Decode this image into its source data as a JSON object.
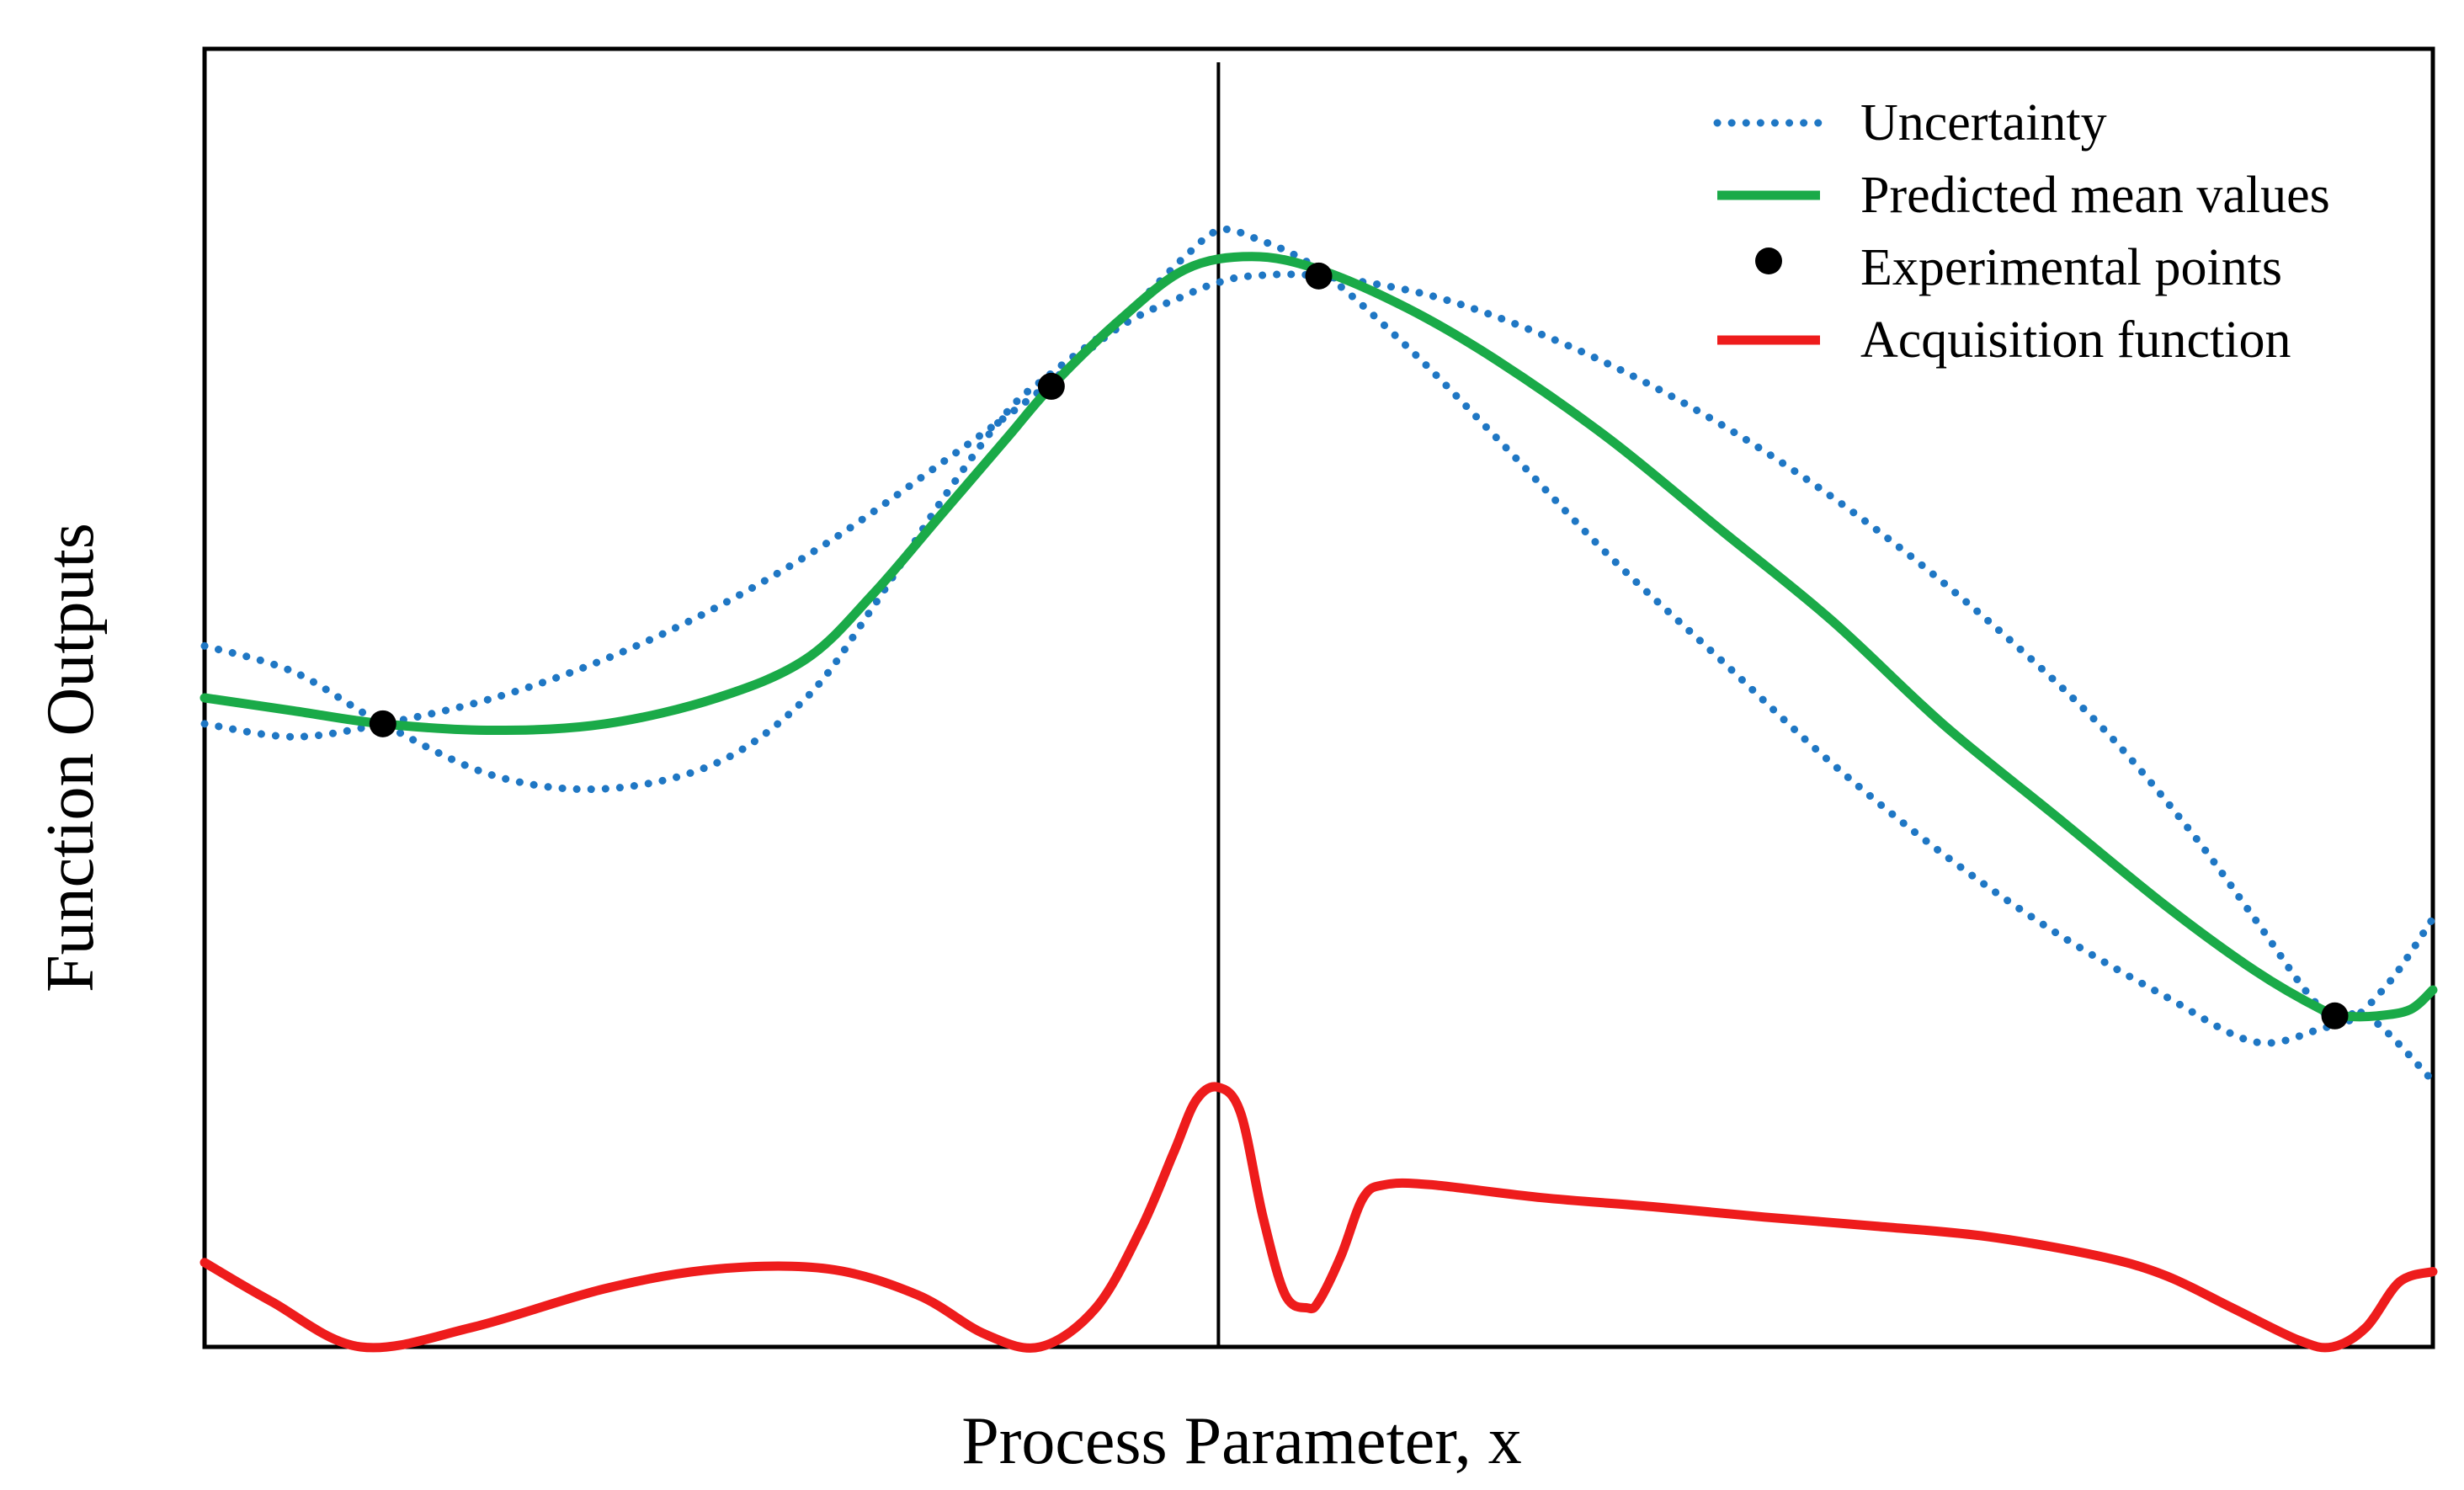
{
  "chart_data": {
    "type": "line",
    "title": "",
    "xlabel": "Process Parameter, x",
    "ylabel": "Function Outputs",
    "xlim": [
      0,
      1
    ],
    "ylim": [
      0,
      1
    ],
    "grid": false,
    "legend_position": "top-right",
    "colors": {
      "uncertainty": "#1f77c4",
      "mean": "#1aaa48",
      "points": "#000000",
      "acquisition": "#ee1c1c",
      "selection": "#000000"
    },
    "legend": [
      {
        "key": "uncertainty",
        "label": "Uncertainty",
        "style": "dotted"
      },
      {
        "key": "mean",
        "label": "Predicted mean values",
        "style": "solid"
      },
      {
        "key": "points",
        "label": "Experimental points",
        "style": "marker"
      },
      {
        "key": "acquisition",
        "label": "Acquisition function",
        "style": "solid"
      }
    ],
    "selected_x": 0.455,
    "series": [
      {
        "name": "Predicted mean values",
        "key": "mean",
        "x": [
          0.0,
          0.04,
          0.08,
          0.13,
          0.18,
          0.23,
          0.27,
          0.3,
          0.33,
          0.36,
          0.38,
          0.41,
          0.44,
          0.47,
          0.5,
          0.54,
          0.58,
          0.63,
          0.68,
          0.73,
          0.78,
          0.83,
          0.88,
          0.92,
          0.95,
          0.96,
          0.975,
          0.99,
          1.0
        ],
        "y": [
          0.5,
          0.49,
          0.48,
          0.475,
          0.48,
          0.5,
          0.53,
          0.58,
          0.64,
          0.7,
          0.74,
          0.79,
          0.83,
          0.84,
          0.83,
          0.8,
          0.76,
          0.7,
          0.63,
          0.56,
          0.48,
          0.41,
          0.34,
          0.29,
          0.26,
          0.255,
          0.255,
          0.26,
          0.275
        ]
      },
      {
        "name": "Uncertainty (upper)",
        "key": "uncertainty",
        "x": [
          0.0,
          0.04,
          0.08,
          0.13,
          0.18,
          0.23,
          0.28,
          0.33,
          0.37,
          0.41,
          0.44,
          0.455,
          0.47,
          0.5,
          0.55,
          0.6,
          0.65,
          0.7,
          0.75,
          0.8,
          0.85,
          0.89,
          0.92,
          0.945,
          0.96,
          0.98,
          1.0
        ],
        "y": [
          0.48,
          0.47,
          0.48,
          0.5,
          0.53,
          0.57,
          0.62,
          0.68,
          0.73,
          0.785,
          0.81,
          0.82,
          0.825,
          0.825,
          0.81,
          0.78,
          0.74,
          0.69,
          0.63,
          0.56,
          0.48,
          0.4,
          0.33,
          0.27,
          0.25,
          0.28,
          0.33
        ]
      },
      {
        "name": "Uncertainty (lower)",
        "key": "uncertainty",
        "x": [
          0.0,
          0.04,
          0.08,
          0.13,
          0.18,
          0.23,
          0.27,
          0.3,
          0.33,
          0.36,
          0.38,
          0.41,
          0.44,
          0.455,
          0.47,
          0.5,
          0.54,
          0.58,
          0.63,
          0.68,
          0.73,
          0.78,
          0.83,
          0.88,
          0.92,
          0.95,
          0.97,
          1.0
        ],
        "y": [
          0.54,
          0.52,
          0.48,
          0.44,
          0.43,
          0.45,
          0.5,
          0.57,
          0.65,
          0.72,
          0.75,
          0.79,
          0.84,
          0.86,
          0.855,
          0.83,
          0.77,
          0.7,
          0.61,
          0.53,
          0.45,
          0.38,
          0.32,
          0.27,
          0.235,
          0.245,
          0.255,
          0.205
        ]
      },
      {
        "name": "Experimental points",
        "key": "points",
        "x": [
          0.08,
          0.38,
          0.5,
          0.956
        ],
        "y": [
          0.48,
          0.74,
          0.825,
          0.255
        ]
      },
      {
        "name": "Acquisition function",
        "key": "acquisition",
        "x": [
          0.0,
          0.03,
          0.07,
          0.12,
          0.18,
          0.23,
          0.28,
          0.32,
          0.35,
          0.375,
          0.4,
          0.42,
          0.435,
          0.445,
          0.455,
          0.465,
          0.475,
          0.485,
          0.495,
          0.5,
          0.51,
          0.52,
          0.53,
          0.55,
          0.6,
          0.65,
          0.7,
          0.75,
          0.8,
          0.85,
          0.88,
          0.91,
          0.94,
          0.955,
          0.97,
          0.985,
          1.0
        ],
        "y": [
          0.065,
          0.035,
          0.0,
          0.015,
          0.045,
          0.06,
          0.06,
          0.04,
          0.01,
          0.0,
          0.03,
          0.09,
          0.15,
          0.19,
          0.2,
          0.18,
          0.1,
          0.04,
          0.03,
          0.035,
          0.07,
          0.115,
          0.125,
          0.125,
          0.115,
          0.108,
          0.1,
          0.093,
          0.085,
          0.07,
          0.055,
          0.03,
          0.005,
          0.0,
          0.015,
          0.05,
          0.058
        ]
      }
    ]
  }
}
